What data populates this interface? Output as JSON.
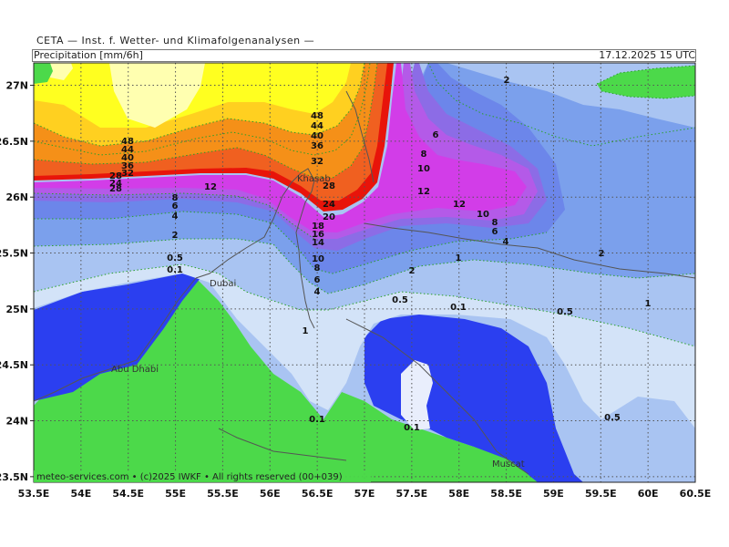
{
  "header": {
    "title": "CETA — Inst. f. Wetter- und Klimafolgenanalysen —",
    "parameter": "Precipitation [mm/6h]",
    "valid_time": "17.12.2025 15 UTC"
  },
  "map": {
    "lon_range": [
      53.5,
      60.5
    ],
    "lat_range": [
      23.45,
      27.2
    ],
    "lon_ticks": [
      "53.5E",
      "54E",
      "54.5E",
      "55E",
      "55.5E",
      "56E",
      "56.5E",
      "57E",
      "57.5E",
      "58E",
      "58.5E",
      "59E",
      "59.5E",
      "60E",
      "60.5E"
    ],
    "lat_ticks": [
      "27N",
      "26.5N",
      "26N",
      "25.5N",
      "25N",
      "24.5N",
      "24N",
      "23.5N"
    ],
    "colors": {
      "land": "#4cd94a",
      "light": "#d3e3f8",
      "lightblue": "#a9c4f2",
      "midblue": "#7ba0ec",
      "blue2": "#6c86ea",
      "violet": "#8c6ce6",
      "purple": "#b45ae8",
      "magenta": "#d23de8",
      "red": "#e8140a",
      "orange": "#f06020",
      "orange2": "#f59018",
      "yellow2": "#ffd020",
      "yellow": "#ffff20",
      "paleyellow": "#ffffb0",
      "deepblue": "#2b3ff0",
      "whitecloud": "#e9eefc"
    },
    "cities": [
      "Khasab",
      "Dubai",
      "Abu Dhabi",
      "Muscat"
    ],
    "contour_labels": [
      "48",
      "44",
      "40",
      "36",
      "32",
      "28",
      "24",
      "20",
      "18",
      "16",
      "14",
      "12",
      "10",
      "8",
      "6",
      "4",
      "2",
      "1",
      "0.5",
      "0.1"
    ],
    "credit": "meteo-services.com • (c)2025 IWKF • All rights reserved (00+039)"
  }
}
